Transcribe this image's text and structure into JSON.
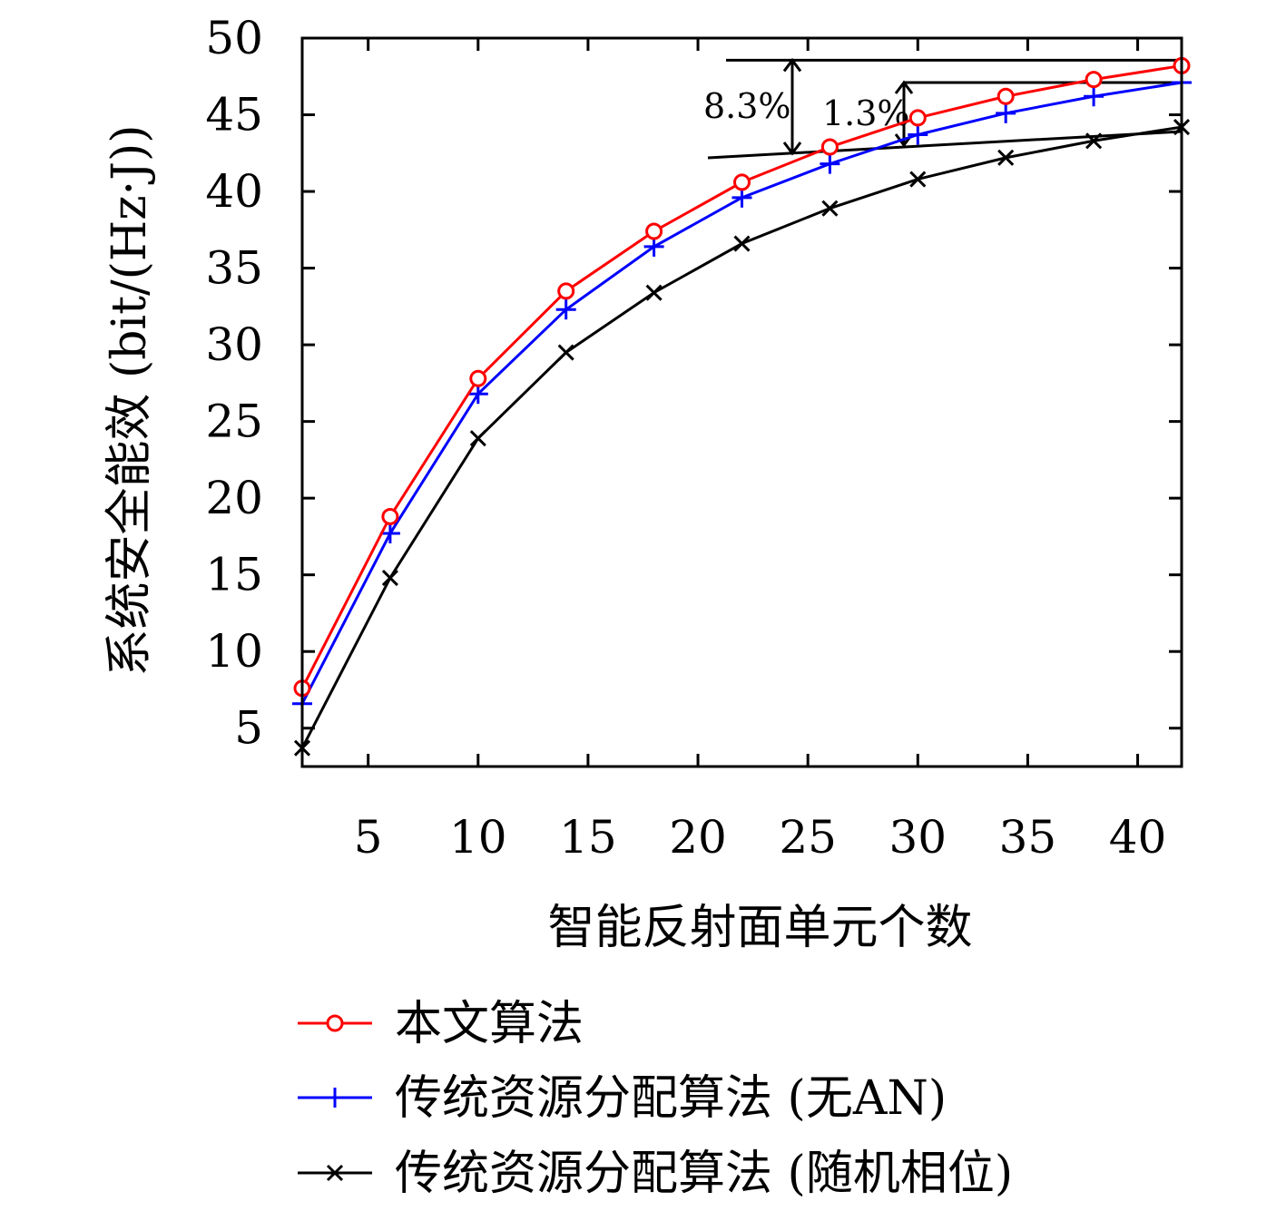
{
  "chart_data": {
    "type": "line",
    "xlabel": "智能反射面单元个数",
    "ylabel": "系统安全能效 (bit/(Hz·J))",
    "x": [
      2,
      6,
      10,
      14,
      18,
      22,
      26,
      30,
      34,
      38,
      42
    ],
    "xlim": [
      2,
      42
    ],
    "ylim": [
      2.5,
      50
    ],
    "xticks": [
      5,
      10,
      15,
      20,
      25,
      30,
      35,
      40
    ],
    "yticks": [
      5,
      10,
      15,
      20,
      25,
      30,
      35,
      40,
      45,
      50
    ],
    "grid": false,
    "legend_position": "below",
    "series": [
      {
        "name": "本文算法",
        "color": "#ff0000",
        "marker": "circle",
        "values": [
          7.6,
          18.8,
          27.8,
          33.5,
          37.4,
          40.6,
          42.9,
          44.8,
          46.2,
          47.3,
          48.2
        ]
      },
      {
        "name": "传统资源分配算法 (无AN)",
        "color": "#0000ff",
        "marker": "plus",
        "values": [
          6.6,
          17.7,
          26.8,
          32.3,
          36.4,
          39.6,
          41.8,
          43.7,
          45.1,
          46.2,
          47.1
        ]
      },
      {
        "name": "传统资源分配算法 (随机相位)",
        "color": "#000000",
        "marker": "x",
        "values": [
          3.7,
          14.8,
          23.9,
          29.5,
          33.4,
          36.6,
          38.9,
          40.8,
          42.2,
          43.3,
          44.2
        ]
      }
    ],
    "annotations": [
      {
        "text": "8.3%"
      },
      {
        "text": "1.3%"
      }
    ]
  }
}
